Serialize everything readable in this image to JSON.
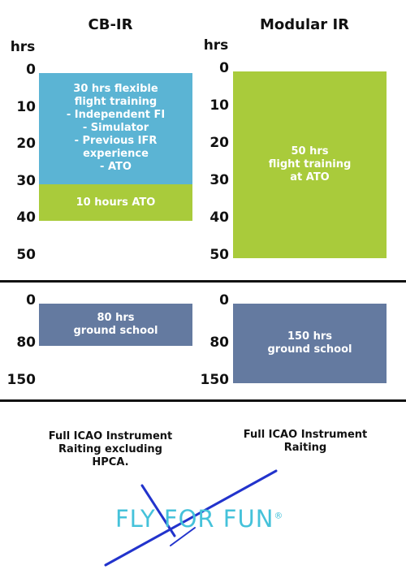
{
  "chart_data": [
    {
      "type": "bar",
      "title": "CB-IR",
      "y_label": "hrs",
      "ylim": [
        0,
        50
      ],
      "yticks": [
        0,
        10,
        20,
        30,
        40,
        50
      ],
      "series": [
        {
          "name": "30 hrs flexible\nflight training\n- Independent FI\n- Simulator\n- Previous IFR\nexperience\n- ATO",
          "color": "#5bb4d4",
          "values": [
            30
          ]
        },
        {
          "name": "10 hours ATO",
          "color": "#a9cb3b",
          "values": [
            10
          ]
        }
      ]
    },
    {
      "type": "bar",
      "title": "Modular IR",
      "y_label": "hrs",
      "ylim": [
        0,
        50
      ],
      "yticks": [
        0,
        10,
        20,
        30,
        40,
        50
      ],
      "series": [
        {
          "name": "50 hrs\nflight training\nat ATO",
          "color": "#a9cb3b",
          "values": [
            50
          ]
        }
      ]
    },
    {
      "type": "bar",
      "ylim": [
        0,
        150
      ],
      "yticks": [
        0,
        80,
        150
      ],
      "series": [
        {
          "name": "80 hrs\nground school",
          "color": "#647aa0",
          "values": [
            80
          ]
        }
      ]
    },
    {
      "type": "bar",
      "ylim": [
        0,
        150
      ],
      "yticks": [
        0,
        80,
        150
      ],
      "series": [
        {
          "name": "150 hrs\nground school",
          "color": "#647aa0",
          "values": [
            150
          ]
        }
      ]
    }
  ],
  "captions": [
    "Full ICAO Instrument\nRaiting excluding\nHPCA.",
    "Full ICAO Instrument\nRaiting"
  ],
  "logo": {
    "text": "FLY FOR FUN",
    "mark": "®"
  }
}
